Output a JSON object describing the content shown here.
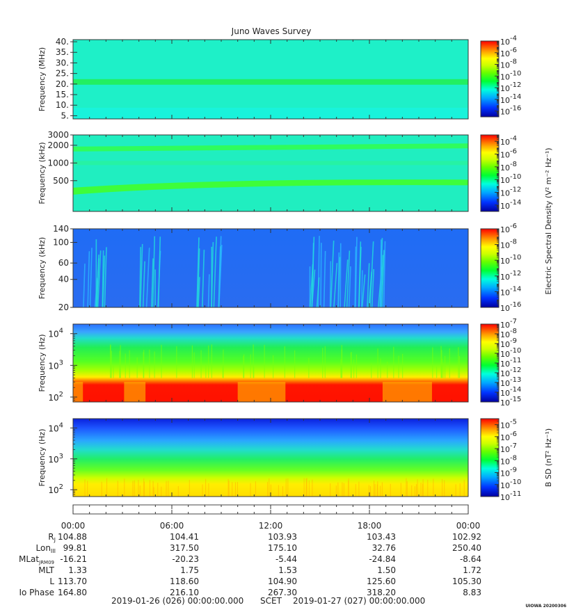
{
  "title": "Juno Waves Survey",
  "chart_data": [
    {
      "type": "heatmap",
      "ylabel": "Frequency (MHz)",
      "yscale": "linear",
      "ylim": [
        3.5,
        41
      ],
      "yticks": [
        5,
        10,
        15,
        20,
        25,
        30,
        35,
        40
      ],
      "ytick_labels": [
        "5.",
        "10.",
        "15.",
        "20.",
        "25.",
        "30.",
        "35.",
        "40."
      ],
      "colorbar": {
        "exponents": [
          "-4",
          "-6",
          "-8",
          "-10",
          "-12",
          "-14",
          "-16"
        ],
        "min_exp": -17,
        "max_exp": -4
      },
      "description_level": "uniform green-cyan background with a brighter green band near 21 MHz"
    },
    {
      "type": "heatmap",
      "ylabel": "Frequency (kHz)",
      "yscale": "log",
      "ylim": [
        150,
        3000
      ],
      "yticks": [
        500,
        1000,
        2000,
        3000
      ],
      "ytick_labels": [
        "500",
        "1000",
        "2000",
        "3000"
      ],
      "colorbar": {
        "exponents": [
          "-4",
          "-6",
          "-8",
          "-10",
          "-12",
          "-14"
        ],
        "min_exp": -15,
        "max_exp": -3
      },
      "shared_colorbar_label": "Electric Spectral Density (V² m⁻² Hz⁻¹)"
    },
    {
      "type": "heatmap",
      "ylabel": "Frequency (kHz)",
      "yscale": "log",
      "ylim": [
        20,
        140
      ],
      "yticks": [
        20,
        40,
        60,
        100,
        140
      ],
      "ytick_labels": [
        "20",
        "40",
        "60",
        "100",
        "140"
      ],
      "colorbar": {
        "exponents": [
          "-6",
          "-8",
          "-10",
          "-12",
          "-14",
          "-16"
        ],
        "min_exp": -16,
        "max_exp": -6
      }
    },
    {
      "type": "heatmap",
      "ylabel": "Frequency (Hz)",
      "yscale": "log",
      "ylim": [
        70,
        20000
      ],
      "ytick_labels_exp": [
        "2",
        "3",
        "4"
      ],
      "colorbar": {
        "exponents": [
          "-7",
          "-8",
          "-9",
          "-10",
          "-11",
          "-12",
          "-13",
          "-14",
          "-15"
        ],
        "min_exp": -15,
        "max_exp": -7
      }
    },
    {
      "type": "heatmap",
      "ylabel": "Frequency (Hz)",
      "yscale": "log",
      "ylim": [
        60,
        20000
      ],
      "ytick_labels_exp": [
        "2",
        "3",
        "4"
      ],
      "colorbar": {
        "exponents": [
          "-5",
          "-6",
          "-7",
          "-8",
          "-9",
          "-10",
          "-11"
        ],
        "min_exp": -11,
        "max_exp": -4.5
      },
      "colorbar_label": "B SD (nT² Hz⁻¹)"
    }
  ],
  "time_axis": {
    "tick_labels": [
      "00:00",
      "06:00",
      "12:00",
      "18:00",
      "00:00"
    ],
    "hours": [
      0,
      6,
      12,
      18,
      24
    ]
  },
  "ephemeris": {
    "rows": [
      {
        "label": "RJ",
        "values": [
          "104.88",
          "104.41",
          "103.93",
          "103.43",
          "102.92"
        ]
      },
      {
        "label": "LonIII",
        "values": [
          "99.81",
          "317.50",
          "175.10",
          "32.76",
          "250.40"
        ]
      },
      {
        "label": "MLatJRM09",
        "values": [
          "-16.21",
          "-20.23",
          "-5.44",
          "-24.84",
          "-8.64"
        ]
      },
      {
        "label": "MLT",
        "values": [
          "1.33",
          "1.75",
          "1.53",
          "1.50",
          "1.72"
        ]
      },
      {
        "label": "L",
        "values": [
          "113.70",
          "118.60",
          "104.90",
          "125.60",
          "105.30"
        ]
      },
      {
        "label": "Io Phase",
        "values": [
          "164.80",
          "216.10",
          "267.30",
          "318.20",
          "8.83"
        ]
      }
    ]
  },
  "footer": {
    "start": "2019-01-26 (026) 00:00:00.000",
    "scet": "SCET",
    "end": "2019-01-27 (027) 00:00:00.000",
    "credit": "UIOWA 20200306"
  }
}
